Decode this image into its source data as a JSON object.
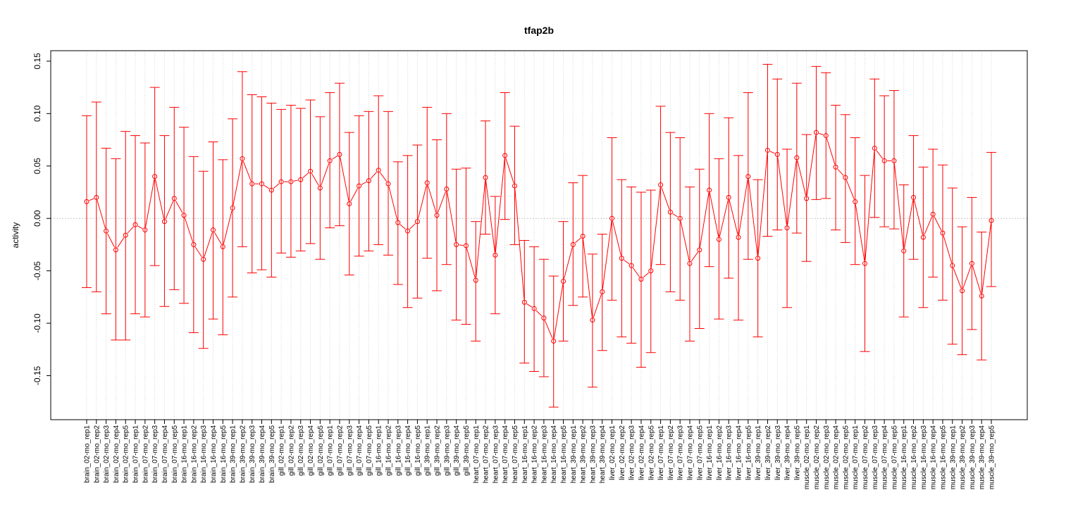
{
  "chart_data": {
    "type": "line",
    "title": "tfap2b",
    "xlabel": "",
    "ylabel": "activity",
    "ylim": [
      -0.192,
      0.16
    ],
    "yticks": [
      -0.15,
      -0.1,
      -0.05,
      0.0,
      0.05,
      0.1,
      0.15
    ],
    "ytick_labels": [
      "-0.15",
      "-0.10",
      "-0.05",
      "0.00",
      "0.05",
      "0.10",
      "0.15"
    ],
    "grid": true,
    "reference_line_y": 0,
    "color": "#ff0000",
    "categories": [
      "brain_02-mo_rep1",
      "brain_02-mo_rep2",
      "brain_02-mo_rep3",
      "brain_02-mo_rep4",
      "brain_02-mo_rep5",
      "brain_07-mo_rep1",
      "brain_07-mo_rep2",
      "brain_07-mo_rep3",
      "brain_07-mo_rep4",
      "brain_07-mo_rep5",
      "brain_16-mo_rep1",
      "brain_16-mo_rep2",
      "brain_16-mo_rep3",
      "brain_16-mo_rep4",
      "brain_16-mo_rep5",
      "brain_39-mo_rep1",
      "brain_39-mo_rep2",
      "brain_39-mo_rep3",
      "brain_39-mo_rep4",
      "brain_39-mo_rep5",
      "gill_02-mo_rep1",
      "gill_02-mo_rep2",
      "gill_02-mo_rep3",
      "gill_02-mo_rep4",
      "gill_02-mo_rep5",
      "gill_07-mo_rep1",
      "gill_07-mo_rep2",
      "gill_07-mo_rep3",
      "gill_07-mo_rep4",
      "gill_07-mo_rep5",
      "gill_16-mo_rep1",
      "gill_16-mo_rep2",
      "gill_16-mo_rep3",
      "gill_16-mo_rep4",
      "gill_16-mo_rep5",
      "gill_39-mo_rep1",
      "gill_39-mo_rep2",
      "gill_39-mo_rep3",
      "gill_39-mo_rep4",
      "gill_39-mo_rep5",
      "heart_07-mo_rep1",
      "heart_07-mo_rep2",
      "heart_07-mo_rep3",
      "heart_07-mo_rep4",
      "heart_07-mo_rep5",
      "heart_16-mo_rep1",
      "heart_16-mo_rep2",
      "heart_16-mo_rep3",
      "heart_16-mo_rep4",
      "heart_16-mo_rep5",
      "heart_39-mo_rep1",
      "heart_39-mo_rep2",
      "heart_39-mo_rep3",
      "heart_39-mo_rep4",
      "liver_02-mo_rep1",
      "liver_02-mo_rep2",
      "liver_02-mo_rep3",
      "liver_02-mo_rep4",
      "liver_02-mo_rep5",
      "liver_07-mo_rep1",
      "liver_07-mo_rep2",
      "liver_07-mo_rep3",
      "liver_07-mo_rep4",
      "liver_07-mo_rep5",
      "liver_16-mo_rep1",
      "liver_16-mo_rep2",
      "liver_16-mo_rep3",
      "liver_16-mo_rep4",
      "liver_16-mo_rep5",
      "liver_39-mo_rep1",
      "liver_39-mo_rep2",
      "liver_39-mo_rep3",
      "liver_39-mo_rep4",
      "liver_39-mo_rep5",
      "muscle_02-mo_rep1",
      "muscle_02-mo_rep2",
      "muscle_02-mo_rep3",
      "muscle_02-mo_rep4",
      "muscle_02-mo_rep5",
      "muscle_07-mo_rep1",
      "muscle_07-mo_rep2",
      "muscle_07-mo_rep3",
      "muscle_07-mo_rep4",
      "muscle_07-mo_rep5",
      "muscle_16-mo_rep1",
      "muscle_16-mo_rep2",
      "muscle_16-mo_rep3",
      "muscle_16-mo_rep4",
      "muscle_16-mo_rep5",
      "muscle_39-mo_rep1",
      "muscle_39-mo_rep2",
      "muscle_39-mo_rep3",
      "muscle_39-mo_rep4",
      "muscle_39-mo_rep5"
    ],
    "values": [
      0.016,
      0.02,
      -0.012,
      -0.03,
      -0.016,
      -0.006,
      -0.011,
      0.04,
      -0.003,
      0.019,
      0.003,
      -0.025,
      -0.039,
      -0.011,
      -0.027,
      0.01,
      0.057,
      0.033,
      0.033,
      0.027,
      0.035,
      0.035,
      0.037,
      0.045,
      0.029,
      0.055,
      0.061,
      0.014,
      0.031,
      0.036,
      0.046,
      0.033,
      -0.004,
      -0.012,
      -0.003,
      0.034,
      0.003,
      0.028,
      -0.025,
      -0.026,
      -0.059,
      0.039,
      -0.035,
      0.06,
      0.031,
      -0.08,
      -0.086,
      -0.095,
      -0.117,
      -0.06,
      -0.025,
      -0.017,
      -0.097,
      -0.07,
      0.0,
      -0.038,
      -0.045,
      -0.058,
      -0.05,
      0.032,
      0.006,
      0.0,
      -0.043,
      -0.03,
      0.027,
      -0.02,
      0.02,
      -0.018,
      0.04,
      -0.038,
      0.065,
      0.061,
      -0.009,
      0.058,
      0.019,
      0.082,
      0.079,
      0.049,
      0.039,
      0.016,
      -0.043,
      0.067,
      0.055,
      0.055,
      -0.031,
      0.02,
      -0.018,
      0.004,
      -0.014,
      -0.045,
      -0.069,
      -0.043,
      -0.074,
      -0.002
    ],
    "upper": [
      0.098,
      0.111,
      0.067,
      0.057,
      0.083,
      0.079,
      0.072,
      0.125,
      0.079,
      0.106,
      0.087,
      0.059,
      0.045,
      0.073,
      0.056,
      0.095,
      0.14,
      0.118,
      0.116,
      0.11,
      0.104,
      0.108,
      0.105,
      0.113,
      0.097,
      0.12,
      0.129,
      0.082,
      0.098,
      0.102,
      0.117,
      0.102,
      0.054,
      0.06,
      0.07,
      0.106,
      0.075,
      0.1,
      0.047,
      0.048,
      -0.003,
      0.093,
      0.021,
      0.12,
      0.088,
      -0.021,
      -0.027,
      -0.039,
      -0.055,
      -0.003,
      0.034,
      0.041,
      -0.034,
      -0.015,
      0.077,
      0.037,
      0.03,
      0.025,
      0.027,
      0.107,
      0.082,
      0.077,
      0.03,
      0.047,
      0.1,
      0.057,
      0.096,
      0.06,
      0.12,
      0.037,
      0.147,
      0.133,
      0.066,
      0.129,
      0.08,
      0.145,
      0.139,
      0.108,
      0.099,
      0.077,
      0.041,
      0.133,
      0.117,
      0.122,
      0.032,
      0.079,
      0.049,
      0.066,
      0.051,
      0.029,
      -0.008,
      0.02,
      -0.013,
      0.063
    ],
    "lower": [
      -0.066,
      -0.07,
      -0.091,
      -0.116,
      -0.116,
      -0.091,
      -0.094,
      -0.045,
      -0.084,
      -0.068,
      -0.081,
      -0.109,
      -0.124,
      -0.096,
      -0.111,
      -0.075,
      -0.027,
      -0.052,
      -0.049,
      -0.056,
      -0.033,
      -0.037,
      -0.031,
      -0.024,
      -0.039,
      -0.009,
      -0.007,
      -0.054,
      -0.036,
      -0.031,
      -0.025,
      -0.035,
      -0.063,
      -0.085,
      -0.076,
      -0.038,
      -0.069,
      -0.044,
      -0.097,
      -0.101,
      -0.117,
      -0.015,
      -0.091,
      -0.001,
      -0.025,
      -0.138,
      -0.146,
      -0.151,
      -0.18,
      -0.117,
      -0.083,
      -0.075,
      -0.161,
      -0.126,
      -0.078,
      -0.113,
      -0.119,
      -0.142,
      -0.128,
      -0.044,
      -0.07,
      -0.078,
      -0.117,
      -0.105,
      -0.046,
      -0.096,
      -0.057,
      -0.097,
      -0.039,
      -0.113,
      -0.017,
      -0.011,
      -0.085,
      -0.014,
      -0.041,
      0.018,
      0.019,
      -0.011,
      -0.023,
      -0.044,
      -0.127,
      0.001,
      -0.008,
      -0.01,
      -0.094,
      -0.039,
      -0.085,
      -0.056,
      -0.078,
      -0.12,
      -0.13,
      -0.106,
      -0.135,
      -0.065
    ]
  }
}
